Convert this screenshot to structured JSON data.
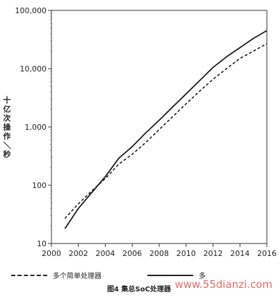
{
  "chart_data": {
    "type": "line",
    "yscale": "log",
    "ylim": [
      10,
      100000
    ],
    "xlim": [
      2000,
      2016
    ],
    "grid": false,
    "legend_position": "bottom",
    "ylabel": "十亿次操作／秒",
    "xlabel": "",
    "x_ticks": [
      "2000",
      "2002",
      "2004",
      "2006",
      "2008",
      "2010",
      "2012",
      "2014",
      "2016"
    ],
    "y_ticks": [
      "10",
      "100",
      "1,000",
      "10,000",
      "100,000"
    ],
    "series": [
      {
        "name": "多个简单处理器",
        "style": "dashed",
        "x": [
          2001,
          2002,
          2003,
          2004,
          2005,
          2006,
          2007,
          2008,
          2009,
          2010,
          2011,
          2012,
          2013,
          2014,
          2015,
          2016
        ],
        "y": [
          27,
          48,
          80,
          130,
          230,
          340,
          540,
          900,
          1500,
          2500,
          4100,
          6600,
          10000,
          15000,
          20000,
          27000
        ]
      },
      {
        "name": "多",
        "style": "solid",
        "x": [
          2001,
          2002,
          2003,
          2004,
          2005,
          2006,
          2007,
          2008,
          2009,
          2010,
          2011,
          2012,
          2013,
          2014,
          2015,
          2016
        ],
        "y": [
          18,
          40,
          75,
          140,
          290,
          460,
          790,
          1300,
          2200,
          3700,
          6200,
          10500,
          16000,
          23000,
          33000,
          45000
        ]
      }
    ]
  },
  "caption": "图4 集总SoC处理器",
  "watermark": "www.55dianzi.com"
}
